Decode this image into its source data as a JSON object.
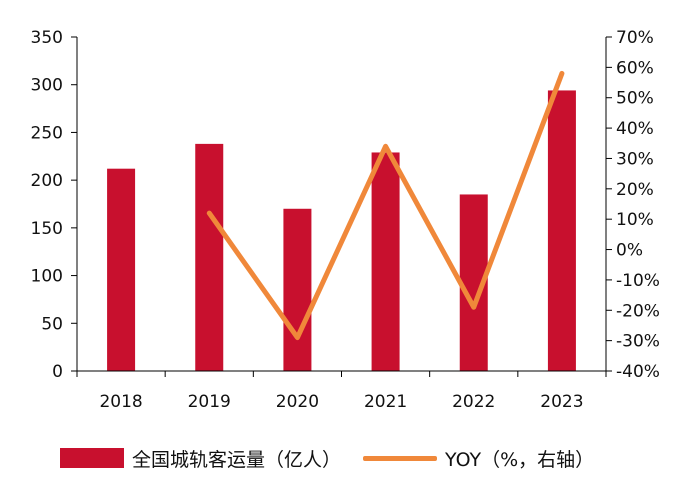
{
  "chart_data": {
    "type": "bar",
    "categories": [
      "2018",
      "2019",
      "2020",
      "2021",
      "2022",
      "2023"
    ],
    "series": [
      {
        "name": "全国城轨客运量（亿人）",
        "type": "bar",
        "axis": "left",
        "color": "#C8102E",
        "values": [
          212,
          238,
          170,
          229,
          185,
          294
        ]
      },
      {
        "name": "YOY（%，右轴）",
        "type": "line",
        "axis": "right",
        "color": "#F0883A",
        "values": [
          null,
          12,
          -29,
          34,
          -19,
          58
        ]
      }
    ],
    "y_left": {
      "min": 0,
      "max": 350,
      "ticks": [
        "0",
        "50",
        "100",
        "150",
        "200",
        "250",
        "300",
        "350"
      ]
    },
    "y_right": {
      "min": -40,
      "max": 70,
      "ticks": [
        "-40%",
        "-30%",
        "-20%",
        "-10%",
        "0%",
        "10%",
        "20%",
        "30%",
        "40%",
        "50%",
        "60%",
        "70%"
      ]
    },
    "grid": false,
    "legend_position": "bottom"
  }
}
